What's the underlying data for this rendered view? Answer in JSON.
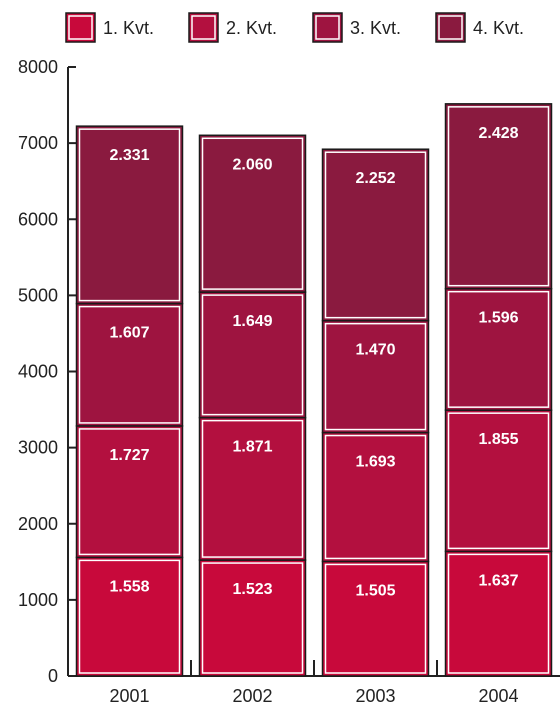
{
  "chart_data": {
    "type": "bar",
    "stacked": true,
    "categories": [
      "2001",
      "2002",
      "2003",
      "2004"
    ],
    "series": [
      {
        "name": "1. Kvt.",
        "values": [
          1558,
          1523,
          1505,
          1637
        ],
        "labels": [
          "1.558",
          "1.523",
          "1.505",
          "1.637"
        ]
      },
      {
        "name": "2. Kvt.",
        "values": [
          1727,
          1871,
          1693,
          1855
        ],
        "labels": [
          "1.727",
          "1.871",
          "1.693",
          "1.855"
        ]
      },
      {
        "name": "3. Kvt.",
        "values": [
          1607,
          1649,
          1470,
          1596
        ],
        "labels": [
          "1.607",
          "1.649",
          "1.470",
          "1.596"
        ]
      },
      {
        "name": "4. Kvt.",
        "values": [
          2331,
          2060,
          2252,
          2428
        ],
        "labels": [
          "2.331",
          "2.060",
          "2.252",
          "2.428"
        ]
      }
    ],
    "colors": [
      "#c8093b",
      "#b3103f",
      "#9e1440",
      "#8a1a3f"
    ],
    "yticks": [
      0,
      1000,
      2000,
      3000,
      4000,
      5000,
      6000,
      7000,
      8000
    ],
    "ylim": [
      0,
      8000
    ],
    "legend_position": "top",
    "grid": false,
    "title": "",
    "xlabel": "",
    "ylabel": ""
  }
}
